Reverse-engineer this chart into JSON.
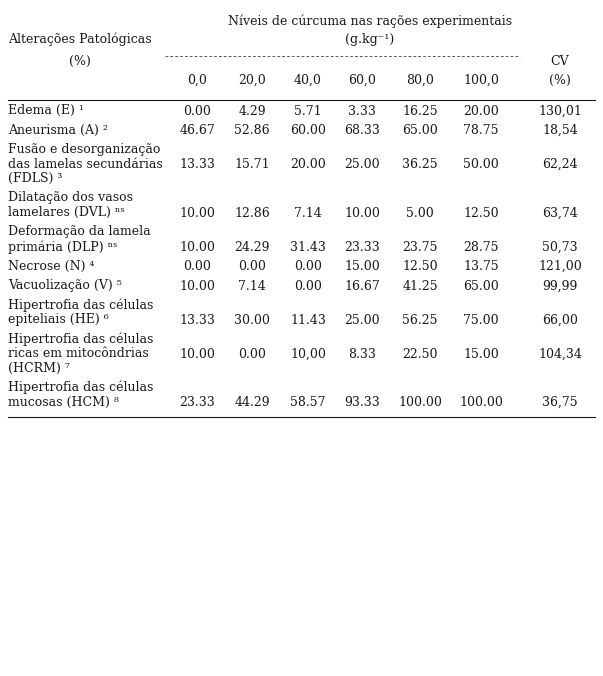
{
  "title_line1": "Níveis de cúrcuma nas rações experimentais",
  "title_line2": "(g.kg⁻¹)",
  "rows": [
    {
      "label_lines": [
        "Edema (E) ¹"
      ],
      "values": [
        "0.00",
        "4.29",
        "5.71",
        "3.33",
        "16.25",
        "20.00"
      ],
      "cv": "130,01",
      "num_label_lines": 1
    },
    {
      "label_lines": [
        "Aneurisma (A) ²"
      ],
      "values": [
        "46.67",
        "52.86",
        "60.00",
        "68.33",
        "65.00",
        "78.75"
      ],
      "cv": "18,54",
      "num_label_lines": 1
    },
    {
      "label_lines": [
        "Fusão e desorganização",
        "das lamelas secundárias",
        "(FDLS) ³"
      ],
      "values": [
        "13.33",
        "15.71",
        "20.00",
        "25.00",
        "36.25",
        "50.00"
      ],
      "cv": "62,24",
      "num_label_lines": 3
    },
    {
      "label_lines": [
        "Dilatação dos vasos",
        "lamelares (DVL) ⁿˢ"
      ],
      "values": [
        "10.00",
        "12.86",
        "7.14",
        "10.00",
        "5.00",
        "12.50"
      ],
      "cv": "63,74",
      "num_label_lines": 2
    },
    {
      "label_lines": [
        "Deformação da lamela",
        "primária (DLP) ⁿˢ"
      ],
      "values": [
        "10.00",
        "24.29",
        "31.43",
        "23.33",
        "23.75",
        "28.75"
      ],
      "cv": "50,73",
      "num_label_lines": 2
    },
    {
      "label_lines": [
        "Necrose (N) ⁴"
      ],
      "values": [
        "0.00",
        "0.00",
        "0.00",
        "15.00",
        "12.50",
        "13.75"
      ],
      "cv": "121,00",
      "num_label_lines": 1
    },
    {
      "label_lines": [
        "Vacuolização (V) ⁵"
      ],
      "values": [
        "10.00",
        "7.14",
        "0.00",
        "16.67",
        "41.25",
        "65.00"
      ],
      "cv": "99,99",
      "num_label_lines": 1
    },
    {
      "label_lines": [
        "Hipertrofia das células",
        "epiteliais (HE) ⁶"
      ],
      "values": [
        "13.33",
        "30.00",
        "11.43",
        "25.00",
        "56.25",
        "75.00"
      ],
      "cv": "66,00",
      "num_label_lines": 2
    },
    {
      "label_lines": [
        "Hipertrofia das células",
        "ricas em mitocôndrias",
        "(HCRM) ⁷"
      ],
      "values": [
        "10.00",
        "0.00",
        "10,00",
        "8.33",
        "22.50",
        "15.00"
      ],
      "cv": "104,34",
      "num_label_lines": 3
    },
    {
      "label_lines": [
        "Hipertrofia das células",
        "mucosas (HCM) ⁸"
      ],
      "values": [
        "23.33",
        "44.29",
        "58.57",
        "93.33",
        "100.00",
        "100.00"
      ],
      "cv": "36,75",
      "num_label_lines": 2
    }
  ],
  "col_headers": [
    "0,0",
    "20,0",
    "40,0",
    "60,0",
    "80,0",
    "100,0"
  ],
  "bg_color": "#ffffff",
  "text_color": "#1a1a1a",
  "font_size": 9.0,
  "font_family": "DejaVu Serif"
}
